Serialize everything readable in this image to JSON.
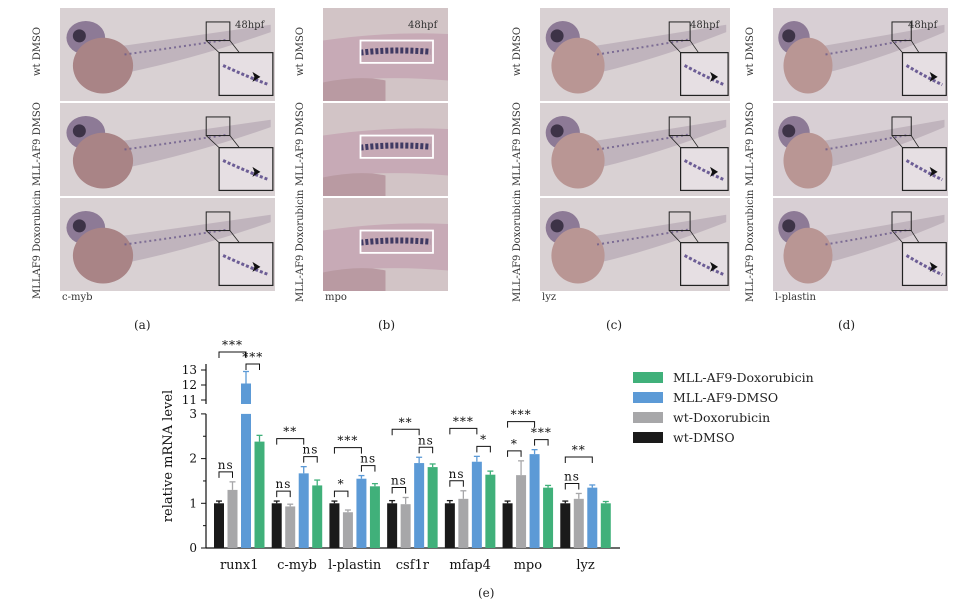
{
  "panels": [
    {
      "id": "a",
      "label": "(a)",
      "stain": "c-myb",
      "stage": "48hpf",
      "rows": [
        "wt DMSO",
        "MLL-AF9 DMSO",
        "MLLAF9 Doxorubicin"
      ]
    },
    {
      "id": "b",
      "label": "(b)",
      "stain": "mpo",
      "stage": "48hpf",
      "rows": [
        "wt DMSO",
        "MLL-AF9 DMSO",
        "MLL-AF9 Doxorubicin"
      ]
    },
    {
      "id": "c",
      "label": "(c)",
      "stain": "lyz",
      "stage": "48hpf",
      "rows": [
        "wt DMSO",
        "MLL-AF9 DMSO",
        "MLL-AF9 Doxorubicin"
      ]
    },
    {
      "id": "d",
      "label": "(d)",
      "stain": "l-plastin",
      "stage": "48hpf",
      "rows": [
        "wt DMSO",
        "MLL-AF9 DMSO",
        "MLL-AF9 Doxorubicin"
      ]
    }
  ],
  "chart_label": "(e)",
  "chart_data": {
    "type": "bar",
    "ylabel": "relative mRNA level",
    "y_ticks_lower": [
      "0",
      "1",
      "2",
      "3"
    ],
    "y_ticks_upper": [
      "11",
      "12",
      "13"
    ],
    "axis_break": true,
    "categories": [
      "runx1",
      "c-myb",
      "l-plastin",
      "csf1r",
      "mfap4",
      "mpo",
      "lyz"
    ],
    "series": [
      {
        "name": "wt-DMSO",
        "color": "#1a1a1a",
        "values": [
          1.0,
          1.0,
          1.0,
          1.0,
          1.0,
          1.0,
          1.0
        ],
        "errors": [
          0.05,
          0.05,
          0.05,
          0.06,
          0.06,
          0.05,
          0.05
        ]
      },
      {
        "name": "wt-Doxorubicin",
        "color": "#a7a7a9",
        "values": [
          1.3,
          0.93,
          0.8,
          0.98,
          1.1,
          1.63,
          1.1
        ],
        "errors": [
          0.18,
          0.05,
          0.05,
          0.15,
          0.18,
          0.32,
          0.12
        ]
      },
      {
        "name": "MLL-AF9-DMSO",
        "color": "#5c9ad6",
        "values": [
          12.1,
          1.67,
          1.55,
          1.9,
          1.93,
          2.1,
          1.35
        ],
        "errors": [
          0.8,
          0.15,
          0.07,
          0.13,
          0.12,
          0.1,
          0.06
        ]
      },
      {
        "name": "MLL-AF9-Doxorubicin",
        "color": "#40b07a",
        "values": [
          2.38,
          1.4,
          1.38,
          1.81,
          1.64,
          1.35,
          1.0
        ],
        "errors": [
          0.14,
          0.12,
          0.06,
          0.07,
          0.08,
          0.05,
          0.04
        ]
      }
    ],
    "legend_order": [
      "MLL-AF9-Doxorubicin",
      "MLL-AF9-DMSO",
      "wt-Doxorubicin",
      "wt-DMSO"
    ],
    "legend_position": "right",
    "significance": [
      {
        "category": "runx1",
        "marks": [
          "ns",
          "***",
          "***"
        ]
      },
      {
        "category": "c-myb",
        "marks": [
          "ns",
          "**",
          "ns"
        ]
      },
      {
        "category": "l-plastin",
        "marks": [
          "*",
          "***",
          "ns"
        ]
      },
      {
        "category": "csf1r",
        "marks": [
          "ns",
          "**",
          "ns"
        ]
      },
      {
        "category": "mfap4",
        "marks": [
          "ns",
          "***",
          "*"
        ]
      },
      {
        "category": "mpo",
        "marks": [
          "*",
          "***",
          "***"
        ]
      },
      {
        "category": "lyz",
        "marks": [
          "ns",
          "**"
        ]
      }
    ]
  }
}
